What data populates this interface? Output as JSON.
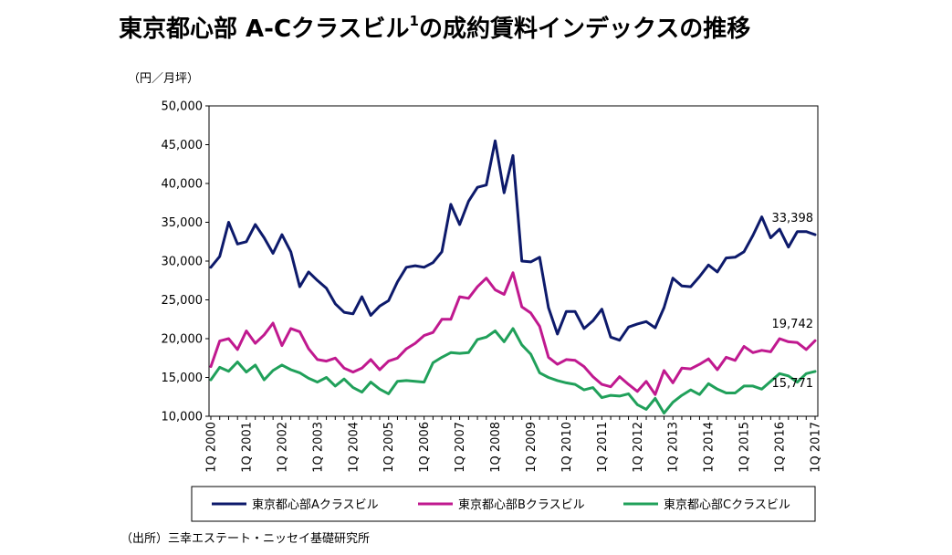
{
  "chart_data": {
    "type": "line",
    "title": "東京都心部 A-Cクラスビル",
    "title_sup": "1",
    "title_rest": "の成約賃料インデックスの推移",
    "ylabel": "（円／月坪）",
    "source": "（出所）三幸エステート・ニッセイ基礎研究所",
    "ylim": [
      10000,
      50000
    ],
    "yticks": [
      "10,000",
      "15,000",
      "20,000",
      "25,000",
      "30,000",
      "35,000",
      "40,000",
      "45,000",
      "50,000"
    ],
    "ytick_values": [
      10000,
      15000,
      20000,
      25000,
      30000,
      35000,
      40000,
      45000,
      50000
    ],
    "x_tick_labels": [
      "1Q 2000",
      "1Q 2001",
      "1Q 2002",
      "1Q 2003",
      "1Q 2004",
      "1Q 2005",
      "1Q 2006",
      "1Q 2007",
      "1Q 2008",
      "1Q 2009",
      "1Q 2010",
      "1Q 2011",
      "1Q 2012",
      "1Q 2013",
      "1Q 2014",
      "1Q 2015",
      "1Q 2016",
      "1Q 2017"
    ],
    "quarters_per_tick": 4,
    "series": [
      {
        "name": "東京都心部Aクラスビル",
        "color": "#0d1a6b",
        "end_label": "33,398",
        "values": [
          29200,
          30600,
          35000,
          32200,
          32500,
          34700,
          33000,
          31000,
          33400,
          31200,
          26700,
          28600,
          27500,
          26500,
          24500,
          23400,
          23200,
          25400,
          23000,
          24200,
          24900,
          27300,
          29200,
          29400,
          29200,
          29800,
          31200,
          37300,
          34700,
          37700,
          39500,
          39800,
          45500,
          38800,
          43600,
          30000,
          29900,
          30500,
          24000,
          20600,
          23500,
          23500,
          21300,
          22300,
          23800,
          20200,
          19800,
          21500,
          21900,
          22200,
          21400,
          24000,
          27800,
          26800,
          26700,
          28000,
          29500,
          28600,
          30400,
          30500,
          31200,
          33300,
          35700,
          33000,
          34100,
          31800,
          33800,
          33800,
          33398
        ]
      },
      {
        "name": "東京都心部Bクラスビル",
        "color": "#c0198f",
        "end_label": "19,742",
        "values": [
          16400,
          19700,
          20000,
          18600,
          21000,
          19400,
          20500,
          22000,
          19100,
          21300,
          20900,
          18700,
          17300,
          17100,
          17500,
          16200,
          15700,
          16200,
          17300,
          16000,
          17100,
          17500,
          18700,
          19400,
          20400,
          20800,
          22500,
          22500,
          25400,
          25200,
          26700,
          27800,
          26300,
          25700,
          28500,
          24100,
          23300,
          21600,
          17600,
          16700,
          17300,
          17200,
          16400,
          15100,
          14100,
          13800,
          15100,
          14100,
          13200,
          14500,
          12800,
          15900,
          14300,
          16200,
          16100,
          16700,
          17400,
          16000,
          17600,
          17200,
          19000,
          18200,
          18500,
          18300,
          20000,
          19600,
          19500,
          18600,
          19742
        ]
      },
      {
        "name": "東京都心部Cクラスビル",
        "color": "#20a05a",
        "end_label": "15,771",
        "values": [
          14700,
          16300,
          15800,
          17000,
          15700,
          16600,
          14700,
          15900,
          16600,
          16000,
          15600,
          14900,
          14400,
          15000,
          13900,
          14800,
          13700,
          13100,
          14400,
          13500,
          12900,
          14500,
          14600,
          14500,
          14400,
          16900,
          17600,
          18200,
          18100,
          18200,
          19900,
          20200,
          21000,
          19600,
          21300,
          19200,
          18000,
          15600,
          15000,
          14600,
          14300,
          14100,
          13400,
          13700,
          12400,
          12700,
          12600,
          12900,
          11500,
          10900,
          12300,
          10400,
          11800,
          12700,
          13400,
          12800,
          14200,
          13500,
          13000,
          13000,
          13900,
          13900,
          13500,
          14500,
          15500,
          15200,
          14400,
          15500,
          15771
        ]
      }
    ]
  }
}
